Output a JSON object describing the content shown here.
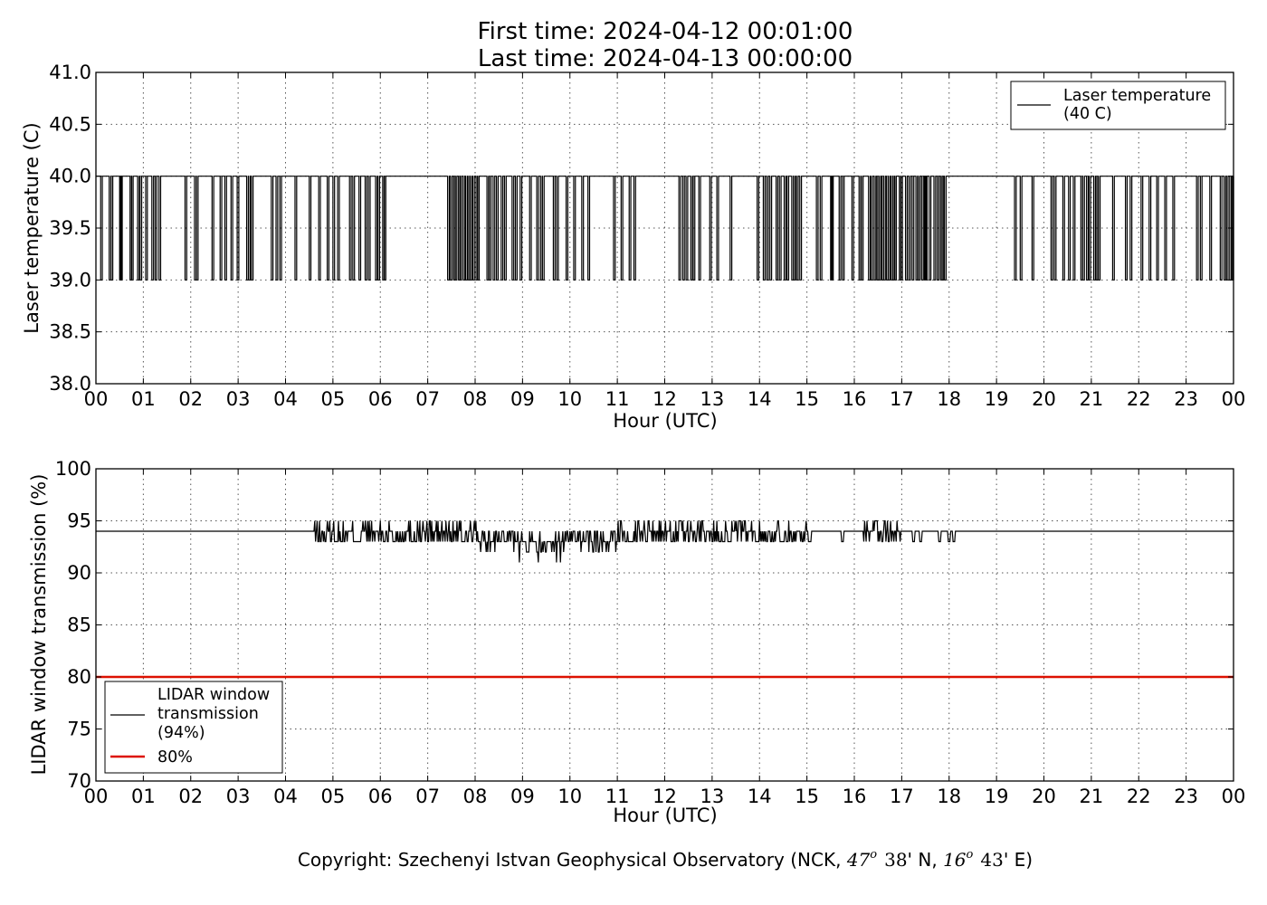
{
  "figure": {
    "title_line1": "First time: 2024-04-12 00:01:00",
    "title_line2": "Last time: 2024-04-13 00:00:00",
    "copyright_prefix": "Copyright: Szechenyi Istvan Geophysical Observatory (NCK, ",
    "lat_deg": "47",
    "lat_deg_mark": "o",
    "lat_min": "38",
    "lat_suffix": "' N, ",
    "lon_deg": "16",
    "lon_deg_mark": "o",
    "lon_min": "43",
    "lon_suffix": "' E)"
  },
  "chart_data": [
    {
      "type": "line",
      "xlabel": "Hour (UTC)",
      "ylabel": "Laser temperature (C)",
      "xlim": [
        0,
        24
      ],
      "ylim": [
        38.0,
        41.0
      ],
      "xtick_labels": [
        "00",
        "01",
        "02",
        "03",
        "04",
        "05",
        "06",
        "07",
        "08",
        "09",
        "10",
        "11",
        "12",
        "13",
        "14",
        "15",
        "16",
        "17",
        "18",
        "19",
        "20",
        "21",
        "22",
        "23",
        "00"
      ],
      "ytick_labels": [
        "38.0",
        "38.5",
        "39.0",
        "39.5",
        "40.0",
        "40.5",
        "41.0"
      ],
      "ytick_values": [
        38.0,
        38.5,
        39.0,
        39.5,
        40.0,
        40.5,
        41.0
      ],
      "grid": true,
      "legend_position": "top-right",
      "series": [
        {
          "name": "Laser temperature\n(40 C)",
          "color": "#000000",
          "baseline": 40,
          "dip_value": 39,
          "dips_hours": [
            0.1,
            0.28,
            0.32,
            0.5,
            0.52,
            0.72,
            0.75,
            0.88,
            0.93,
            1.05,
            1.18,
            1.25,
            1.33,
            1.88,
            2.08,
            2.12,
            2.45,
            2.62,
            2.72,
            2.85,
            2.98,
            3.18,
            3.22,
            3.28,
            3.7,
            3.8,
            3.88,
            4.2,
            4.5,
            4.7,
            4.88,
            5.0,
            5.1,
            5.35,
            5.42,
            5.55,
            5.68,
            5.75,
            5.9,
            5.95,
            6.05,
            6.08,
            7.42,
            7.48,
            7.55,
            7.58,
            7.65,
            7.68,
            7.75,
            7.8,
            7.85,
            7.9,
            7.95,
            8.02,
            8.05,
            8.25,
            8.3,
            8.38,
            8.45,
            8.55,
            8.62,
            8.78,
            8.85,
            8.95,
            9.15,
            9.3,
            9.38,
            9.42,
            9.65,
            9.72,
            9.92,
            10.08,
            10.25,
            10.38,
            10.92,
            11.08,
            11.25,
            11.35,
            12.3,
            12.38,
            12.45,
            12.55,
            12.6,
            12.72,
            12.95,
            13.1,
            13.38,
            13.95,
            14.08,
            14.15,
            14.22,
            14.35,
            14.42,
            14.52,
            14.58,
            14.68,
            14.72,
            14.78,
            14.85,
            15.2,
            15.28,
            15.5,
            15.52,
            15.68,
            15.75,
            15.95,
            16.1,
            16.15,
            16.3,
            16.35,
            16.42,
            16.48,
            16.52,
            16.58,
            16.62,
            16.68,
            16.72,
            16.78,
            16.82,
            16.85,
            16.95,
            16.98,
            17.08,
            17.15,
            17.22,
            17.3,
            17.35,
            17.42,
            17.48,
            17.5,
            17.58,
            17.68,
            17.75,
            17.82,
            17.85,
            17.9,
            19.38,
            19.5,
            19.75,
            20.15,
            20.22,
            20.4,
            20.52,
            20.62,
            20.78,
            20.82,
            20.9,
            20.95,
            21.05,
            21.1,
            21.15,
            21.45,
            21.72,
            21.82,
            22.05,
            22.22,
            22.38,
            22.55,
            22.72,
            23.22,
            23.3,
            23.5,
            23.72,
            23.8,
            23.85,
            23.92,
            23.98
          ]
        }
      ]
    },
    {
      "type": "line",
      "xlabel": "Hour (UTC)",
      "ylabel": "LIDAR window transmission (%)",
      "xlim": [
        0,
        24
      ],
      "ylim": [
        70,
        100
      ],
      "xtick_labels": [
        "00",
        "01",
        "02",
        "03",
        "04",
        "05",
        "06",
        "07",
        "08",
        "09",
        "10",
        "11",
        "12",
        "13",
        "14",
        "15",
        "16",
        "17",
        "18",
        "19",
        "20",
        "21",
        "22",
        "23",
        "00"
      ],
      "ytick_labels": [
        "70",
        "75",
        "80",
        "85",
        "90",
        "95",
        "100"
      ],
      "ytick_values": [
        70,
        75,
        80,
        85,
        90,
        95,
        100
      ],
      "grid": true,
      "legend_position": "lower-left",
      "series": [
        {
          "name": "LIDAR window\ntransmission\n(94%)",
          "color": "#000000",
          "baseline": 94,
          "active_segments": [
            {
              "range": [
                4.55,
                8.1
              ],
              "choices": [
                93,
                94,
                95
              ],
              "weights": [
                0.42,
                0.36,
                0.22
              ]
            },
            {
              "range": [
                8.1,
                8.9
              ],
              "choices": [
                93,
                94,
                92
              ],
              "weights": [
                0.5,
                0.38,
                0.12
              ]
            },
            {
              "range": [
                8.9,
                9.9
              ],
              "choices": [
                93,
                92,
                94,
                91
              ],
              "weights": [
                0.4,
                0.25,
                0.2,
                0.15
              ]
            },
            {
              "range": [
                9.9,
                11.0
              ],
              "choices": [
                93,
                94,
                92
              ],
              "weights": [
                0.45,
                0.35,
                0.2
              ]
            },
            {
              "range": [
                11.0,
                12.8
              ],
              "choices": [
                93,
                94,
                95
              ],
              "weights": [
                0.38,
                0.37,
                0.25
              ]
            },
            {
              "range": [
                12.8,
                15.1
              ],
              "choices": [
                93,
                94,
                95
              ],
              "weights": [
                0.42,
                0.38,
                0.2
              ]
            },
            {
              "range": [
                16.2,
                17.0
              ],
              "choices": [
                93,
                94,
                95
              ],
              "weights": [
                0.3,
                0.45,
                0.25
              ]
            }
          ],
          "sparse_dips_hours": [
            15.75,
            17.25,
            17.4,
            17.8,
            18.0,
            18.1
          ]
        },
        {
          "name": "80%",
          "color": "#dd1100",
          "constant": 80
        }
      ]
    }
  ]
}
